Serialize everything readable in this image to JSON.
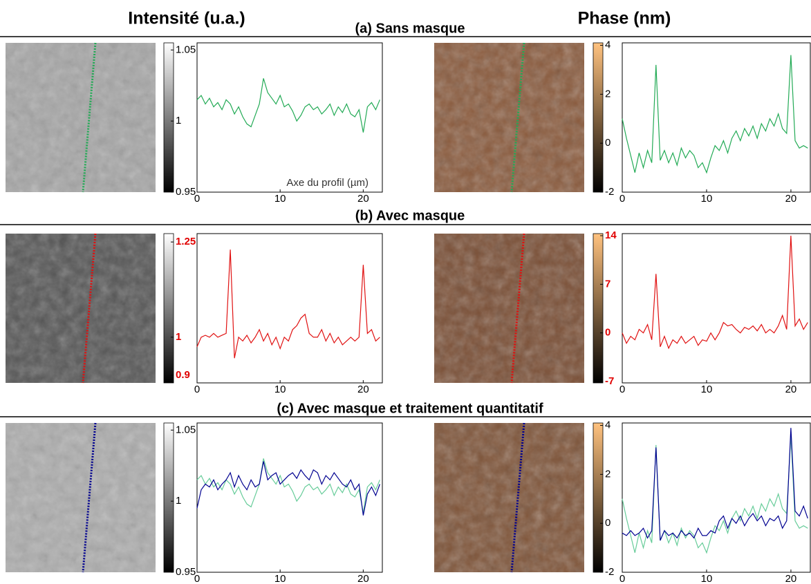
{
  "column_titles": [
    "Intensité (u.a.)",
    "Phase (nm)"
  ],
  "row_titles": [
    "(a) Sans masque",
    "(b) Avec masque",
    "(c) Avec masque et traitement quantitatif"
  ],
  "chart_data": [
    {
      "type": "line",
      "colormap": "gray",
      "xlabel": "Axe du profil (µm)",
      "x": [
        0,
        0.5,
        1,
        1.5,
        2,
        2.5,
        3,
        3.5,
        4,
        4.5,
        5,
        5.5,
        6,
        6.5,
        7,
        7.5,
        8,
        8.5,
        9,
        9.5,
        10,
        10.5,
        11,
        11.5,
        12,
        12.5,
        13,
        13.5,
        14,
        14.5,
        15,
        15.5,
        16,
        16.5,
        17,
        17.5,
        18,
        18.5,
        19,
        19.5,
        20,
        20.5,
        21,
        21.5,
        22
      ],
      "series": [
        {
          "color": "#22aa55",
          "values": [
            1.015,
            1.018,
            1.012,
            1.016,
            1.01,
            1.013,
            1.008,
            1.015,
            1.012,
            1.005,
            1.01,
            1.003,
            0.998,
            0.996,
            1.004,
            1.012,
            1.03,
            1.02,
            1.016,
            1.012,
            1.018,
            1.01,
            1.012,
            1.007,
            1.0,
            1.004,
            1.01,
            1.012,
            1.008,
            1.01,
            1.005,
            1.008,
            1.012,
            1.004,
            1.01,
            1.006,
            1.012,
            1.005,
            1.003,
            1.008,
            0.992,
            1.01,
            1.013,
            1.008,
            1.015
          ]
        }
      ],
      "xlim": [
        0,
        22.3
      ],
      "ylim": [
        0.95,
        1.055
      ],
      "xticks": [
        0,
        10,
        20
      ],
      "yticks": [
        0.95,
        1,
        1.05
      ]
    },
    {
      "type": "line",
      "colormap": "copper",
      "x": [
        0,
        0.5,
        1,
        1.5,
        2,
        2.5,
        3,
        3.5,
        4,
        4.5,
        5,
        5.5,
        6,
        6.5,
        7,
        7.5,
        8,
        8.5,
        9,
        9.5,
        10,
        10.5,
        11,
        11.5,
        12,
        12.5,
        13,
        13.5,
        14,
        14.5,
        15,
        15.5,
        16,
        16.5,
        17,
        17.5,
        18,
        18.5,
        19,
        19.5,
        20,
        20.5,
        21,
        21.5,
        22
      ],
      "series": [
        {
          "color": "#22aa55",
          "values": [
            1.0,
            0.2,
            -0.5,
            -1.2,
            -0.4,
            -1.0,
            -0.3,
            -0.8,
            3.2,
            -0.7,
            -0.3,
            -0.8,
            -0.4,
            -0.9,
            -0.2,
            -0.6,
            -0.3,
            -0.5,
            -1.0,
            -0.8,
            -1.2,
            -0.6,
            -0.1,
            -0.3,
            0.1,
            -0.4,
            0.2,
            0.5,
            0.1,
            0.6,
            0.3,
            0.7,
            0.2,
            0.8,
            0.5,
            1.0,
            0.7,
            1.2,
            0.6,
            0.4,
            3.6,
            0.1,
            -0.2,
            -0.1,
            -0.2
          ]
        }
      ],
      "xlim": [
        0,
        22.3
      ],
      "ylim": [
        -2,
        4.1
      ],
      "xticks": [
        0,
        10,
        20
      ],
      "yticks": [
        -2,
        0,
        2,
        4
      ]
    },
    {
      "type": "line",
      "colormap": "gray",
      "tick_label_color": "#e00000",
      "x": [
        0,
        0.5,
        1,
        1.5,
        2,
        2.5,
        3,
        3.5,
        4,
        4.5,
        5,
        5.5,
        6,
        6.5,
        7,
        7.5,
        8,
        8.5,
        9,
        9.5,
        10,
        10.5,
        11,
        11.5,
        12,
        12.5,
        13,
        13.5,
        14,
        14.5,
        15,
        15.5,
        16,
        16.5,
        17,
        17.5,
        18,
        18.5,
        19,
        19.5,
        20,
        20.5,
        21,
        21.5,
        22
      ],
      "series": [
        {
          "color": "#e01010",
          "values": [
            0.975,
            1.0,
            1.005,
            1.0,
            1.01,
            1.0,
            1.005,
            1.01,
            1.23,
            0.945,
            1.0,
            0.99,
            1.005,
            0.985,
            1.0,
            1.02,
            0.99,
            1.01,
            0.98,
            1.0,
            0.97,
            1.0,
            0.99,
            1.02,
            1.03,
            1.05,
            1.06,
            1.01,
            1.0,
            1.0,
            1.02,
            0.99,
            1.01,
            0.985,
            1.0,
            0.98,
            0.99,
            1.0,
            0.99,
            1.0,
            1.19,
            1.01,
            1.02,
            0.99,
            1.0
          ]
        }
      ],
      "xlim": [
        0,
        22.3
      ],
      "ylim": [
        0.88,
        1.272
      ],
      "xticks": [
        0,
        10,
        20
      ],
      "yticks": [
        0.9,
        1,
        1.25
      ]
    },
    {
      "type": "line",
      "colormap": "copper",
      "tick_label_color": "#e00000",
      "x": [
        0,
        0.5,
        1,
        1.5,
        2,
        2.5,
        3,
        3.5,
        4,
        4.5,
        5,
        5.5,
        6,
        6.5,
        7,
        7.5,
        8,
        8.5,
        9,
        9.5,
        10,
        10.5,
        11,
        11.5,
        12,
        12.5,
        13,
        13.5,
        14,
        14.5,
        15,
        15.5,
        16,
        16.5,
        17,
        17.5,
        18,
        18.5,
        19,
        19.5,
        20,
        20.5,
        21,
        21.5,
        22
      ],
      "series": [
        {
          "color": "#e01010",
          "values": [
            0,
            -1.5,
            -0.5,
            -1.0,
            0.5,
            0,
            1.2,
            -1.0,
            8.5,
            -2.0,
            -0.5,
            -2.2,
            -1.0,
            -1.5,
            -0.5,
            -1.5,
            -1.0,
            -0.5,
            -1.8,
            -1.0,
            -1.2,
            0,
            -1.0,
            0,
            1.5,
            1.0,
            1.2,
            0.5,
            0,
            0.8,
            0.5,
            1.0,
            0.3,
            1.2,
            0,
            0.5,
            0,
            1.0,
            2.5,
            0.5,
            14,
            1.0,
            2.0,
            0.5,
            1.5
          ]
        }
      ],
      "xlim": [
        0,
        22.3
      ],
      "ylim": [
        -7.2,
        14.3
      ],
      "xticks": [
        0,
        10,
        20
      ],
      "yticks": [
        -7,
        0,
        7,
        14
      ]
    },
    {
      "type": "line",
      "colormap": "gray",
      "x": [
        0,
        0.5,
        1,
        1.5,
        2,
        2.5,
        3,
        3.5,
        4,
        4.5,
        5,
        5.5,
        6,
        6.5,
        7,
        7.5,
        8,
        8.5,
        9,
        9.5,
        10,
        10.5,
        11,
        11.5,
        12,
        12.5,
        13,
        13.5,
        14,
        14.5,
        15,
        15.5,
        16,
        16.5,
        17,
        17.5,
        18,
        18.5,
        19,
        19.5,
        20,
        20.5,
        21,
        21.5,
        22
      ],
      "series": [
        {
          "color": "#66cc99",
          "values": [
            1.015,
            1.018,
            1.012,
            1.016,
            1.01,
            1.013,
            1.008,
            1.015,
            1.012,
            1.005,
            1.01,
            1.003,
            0.998,
            0.996,
            1.004,
            1.012,
            1.03,
            1.02,
            1.016,
            1.012,
            1.018,
            1.01,
            1.012,
            1.007,
            1.0,
            1.004,
            1.01,
            1.012,
            1.008,
            1.01,
            1.005,
            1.008,
            1.012,
            1.004,
            1.01,
            1.006,
            1.012,
            1.005,
            1.003,
            1.008,
            0.992,
            1.01,
            1.013,
            1.008,
            1.015
          ]
        },
        {
          "color": "#000090",
          "values": [
            0.995,
            1.008,
            1.012,
            1.01,
            1.015,
            1.008,
            1.012,
            1.015,
            1.02,
            1.01,
            1.018,
            1.012,
            1.008,
            1.015,
            1.01,
            1.012,
            1.028,
            1.015,
            1.018,
            1.02,
            1.012,
            1.015,
            1.018,
            1.02,
            1.016,
            1.022,
            1.018,
            1.015,
            1.022,
            1.02,
            1.012,
            1.018,
            1.015,
            1.02,
            1.016,
            1.012,
            1.01,
            1.015,
            1.008,
            1.012,
            0.99,
            1.005,
            1.01,
            1.004,
            1.012
          ]
        }
      ],
      "xlim": [
        0,
        22.3
      ],
      "ylim": [
        0.95,
        1.055
      ],
      "xticks": [
        0,
        10,
        20
      ],
      "yticks": [
        0.95,
        1,
        1.05
      ]
    },
    {
      "type": "line",
      "colormap": "copper",
      "x": [
        0,
        0.5,
        1,
        1.5,
        2,
        2.5,
        3,
        3.5,
        4,
        4.5,
        5,
        5.5,
        6,
        6.5,
        7,
        7.5,
        8,
        8.5,
        9,
        9.5,
        10,
        10.5,
        11,
        11.5,
        12,
        12.5,
        13,
        13.5,
        14,
        14.5,
        15,
        15.5,
        16,
        16.5,
        17,
        17.5,
        18,
        18.5,
        19,
        19.5,
        20,
        20.5,
        21,
        21.5,
        22
      ],
      "series": [
        {
          "color": "#66cc99",
          "values": [
            1.0,
            0.2,
            -0.5,
            -1.2,
            -0.4,
            -1.0,
            -0.3,
            -0.8,
            3.2,
            -0.7,
            -0.3,
            -0.8,
            -0.4,
            -0.9,
            -0.2,
            -0.6,
            -0.3,
            -0.5,
            -1.0,
            -0.8,
            -1.2,
            -0.6,
            -0.1,
            -0.3,
            0.1,
            -0.4,
            0.2,
            0.5,
            0.1,
            0.6,
            0.3,
            0.7,
            0.2,
            0.8,
            0.5,
            1.0,
            0.7,
            1.2,
            0.6,
            0.4,
            3.6,
            0.1,
            -0.2,
            -0.1,
            -0.2
          ]
        },
        {
          "color": "#000090",
          "values": [
            -0.4,
            -0.5,
            -0.3,
            -0.5,
            -0.4,
            -0.2,
            -0.6,
            -0.3,
            3.1,
            -0.7,
            -0.3,
            -0.5,
            -0.4,
            -0.6,
            -0.3,
            -0.5,
            -0.4,
            -0.6,
            -0.2,
            -0.5,
            -0.5,
            -0.3,
            -0.4,
            0.1,
            0.3,
            -0.2,
            0.2,
            0,
            0.3,
            -0.1,
            0.2,
            0.4,
            0.1,
            0.3,
            -0.1,
            0.2,
            0.1,
            0.3,
            -0.2,
            0.1,
            3.9,
            0.5,
            0.3,
            0.7,
            0.2
          ]
        }
      ],
      "xlim": [
        0,
        22.3
      ],
      "ylim": [
        -2,
        4.1
      ],
      "xticks": [
        0,
        10,
        20
      ],
      "yticks": [
        -2,
        0,
        2,
        4
      ]
    }
  ]
}
